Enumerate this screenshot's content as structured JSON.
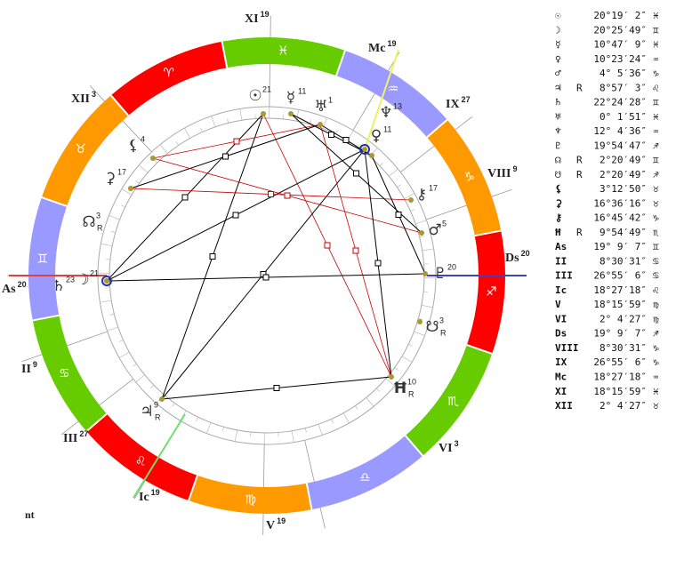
{
  "wheel": {
    "houses": [
      {
        "label": "XI",
        "degree": "19"
      },
      {
        "label": "Mc",
        "degree": "19"
      },
      {
        "label": "IX",
        "degree": "27"
      },
      {
        "label": "VIII",
        "degree": "9"
      },
      {
        "label": "Ds",
        "degree": "20"
      },
      {
        "label": "VI",
        "degree": "3"
      },
      {
        "label": "V",
        "degree": "19"
      },
      {
        "label": "Ic",
        "degree": "19"
      },
      {
        "label": "III",
        "degree": "27"
      },
      {
        "label": "II",
        "degree": "9"
      },
      {
        "label": "As",
        "degree": "20"
      },
      {
        "label": "XII",
        "degree": "3"
      }
    ],
    "signs": [
      "♓",
      "♒",
      "♑",
      "♐",
      "♏",
      "♎",
      "♍",
      "♌",
      "♋",
      "♊",
      "♉",
      "♈"
    ],
    "planets": [
      {
        "glyph": "☉",
        "degree": "21"
      },
      {
        "glyph": "☿",
        "degree": "11"
      },
      {
        "glyph": "♅",
        "degree": "1"
      },
      {
        "glyph": "♆",
        "degree": "13"
      },
      {
        "glyph": "♀",
        "degree": "11"
      },
      {
        "glyph": "⚷",
        "degree": "17"
      },
      {
        "glyph": "♂",
        "degree": "5"
      },
      {
        "glyph": "♇",
        "degree": "20"
      },
      {
        "glyph": "☋",
        "degree": "3",
        "retro": "R"
      },
      {
        "glyph": "Ħ",
        "degree": "10",
        "retro": "R"
      },
      {
        "glyph": "♃",
        "degree": "9",
        "retro": "R"
      },
      {
        "glyph": "☽",
        "degree": "21"
      },
      {
        "glyph": "♄",
        "degree": "23"
      },
      {
        "glyph": "☊",
        "degree": "3",
        "retro": "R"
      },
      {
        "glyph": "⚳",
        "degree": "17"
      },
      {
        "glyph": "⚸",
        "degree": "4"
      }
    ]
  },
  "table": {
    "rows": [
      {
        "symbol": "☉",
        "position": "20°19′ 2″",
        "sign": "♓"
      },
      {
        "symbol": "☽",
        "position": "20°25′49″",
        "sign": "♊"
      },
      {
        "symbol": "☿",
        "position": "10°47′ 9″",
        "sign": "♓"
      },
      {
        "symbol": "♀",
        "position": "10°23′24″",
        "sign": "♒"
      },
      {
        "symbol": "♂",
        "position": "4° 5′36″",
        "sign": "♑"
      },
      {
        "symbol": "♃",
        "retro": "R",
        "position": "8°57′ 3″",
        "sign": "♌"
      },
      {
        "symbol": "♄",
        "position": "22°24′28″",
        "sign": "♊"
      },
      {
        "symbol": "♅",
        "position": "0° 1′51″",
        "sign": "♓"
      },
      {
        "symbol": "♆",
        "position": "12° 4′36″",
        "sign": "♒"
      },
      {
        "symbol": "♇",
        "position": "19°54′47″",
        "sign": "♐"
      },
      {
        "symbol": "☊",
        "retro": "R",
        "position": "2°20′49″",
        "sign": "♊"
      },
      {
        "symbol": "☋",
        "retro": "R",
        "position": "2°20′49″",
        "sign": "♐"
      },
      {
        "symbol": "⚸",
        "position": "3°12′50″",
        "sign": "♉"
      },
      {
        "symbol": "⚳",
        "position": "16°36′16″",
        "sign": "♉"
      },
      {
        "symbol": "⚷",
        "position": "16°45′42″",
        "sign": "♑"
      },
      {
        "symbol": "Ħ",
        "retro": "R",
        "position": "9°54′49″",
        "sign": "♏"
      },
      {
        "symbol": "As",
        "position": "19° 9′ 7″",
        "sign": "♊"
      },
      {
        "symbol": "II",
        "position": "8°30′31″",
        "sign": "♋"
      },
      {
        "symbol": "III",
        "position": "26°55′ 6″",
        "sign": "♋"
      },
      {
        "symbol": "Ic",
        "position": "18°27′18″",
        "sign": "♌"
      },
      {
        "symbol": "V",
        "position": "18°15′59″",
        "sign": "♍"
      },
      {
        "symbol": "VI",
        "position": "2° 4′27″",
        "sign": "♍"
      },
      {
        "symbol": "Ds",
        "position": "19° 9′ 7″",
        "sign": "♐"
      },
      {
        "symbol": "VIII",
        "position": "8°30′31″",
        "sign": "♑"
      },
      {
        "symbol": "IX",
        "position": "26°55′ 6″",
        "sign": "♑"
      },
      {
        "symbol": "Mc",
        "position": "18°27′18″",
        "sign": "♒"
      },
      {
        "symbol": "XI",
        "position": "18°15′59″",
        "sign": "♓"
      },
      {
        "symbol": "XII",
        "position": "2° 4′27″",
        "sign": "♉"
      }
    ]
  },
  "footer": "nt"
}
